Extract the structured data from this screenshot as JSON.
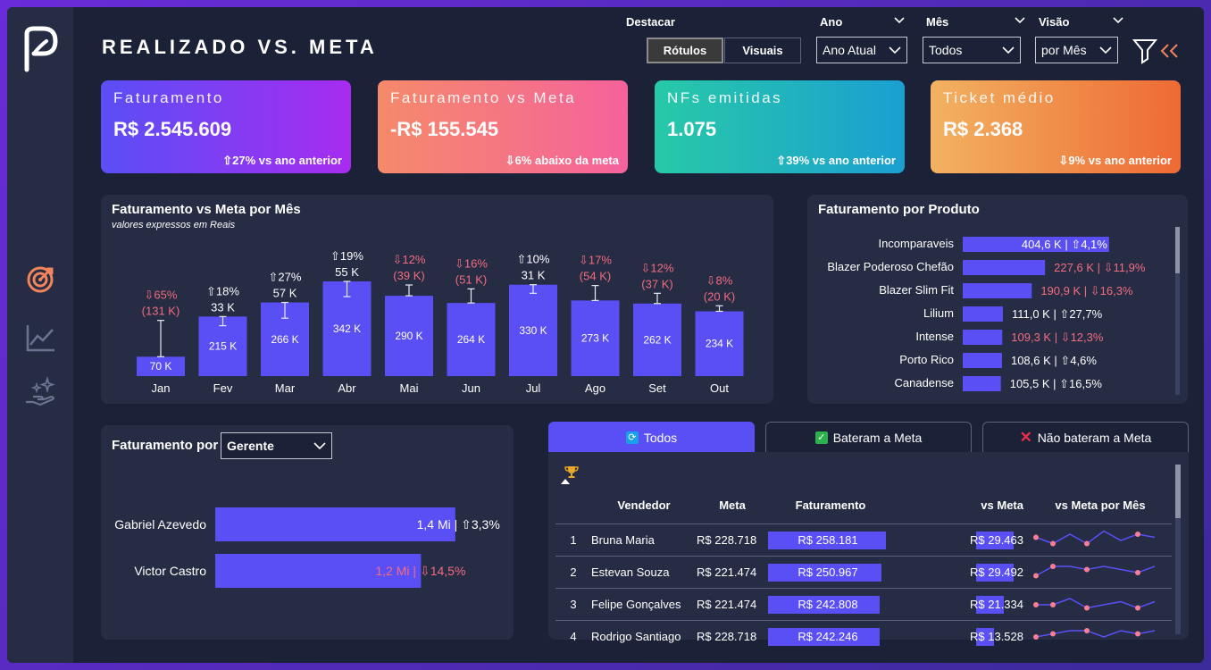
{
  "page_title": "REALIZADO VS. META",
  "filters": {
    "destacar_label": "Destacar",
    "destacar_buttons": [
      "Rótulos",
      "Visuais"
    ],
    "ano_label": "Ano",
    "ano_value": "Ano Atual",
    "mes_label": "Mês",
    "mes_value": "Todos",
    "visao_label": "Visão",
    "visao_value": "por Mês"
  },
  "kpis": [
    {
      "title": "Faturamento",
      "value": "R$ 2.545.609",
      "sub": "⇧27% vs ano anterior",
      "gradient": [
        "#5a4ef5",
        "#a82cf0"
      ]
    },
    {
      "title": "Faturamento vs Meta",
      "value": "-R$ 155.545",
      "sub": "⇩6% abaixo da meta",
      "gradient": [
        "#f58a6a",
        "#f5629c"
      ]
    },
    {
      "title": "NFs emitidas",
      "value": "1.075",
      "sub": "⇧39% vs ano anterior",
      "gradient": [
        "#27c9a8",
        "#1b9fd1"
      ]
    },
    {
      "title": "Ticket médio",
      "value": "R$ 2.368",
      "sub": "⇩9% vs ano anterior",
      "gradient": [
        "#f2b261",
        "#ee6a34"
      ]
    }
  ],
  "monthly": {
    "title": "Faturamento vs Meta por Mês",
    "subtitle": "valores expressos em Reais",
    "chart_data": {
      "type": "bar",
      "categories": [
        "Jan",
        "Fev",
        "Mar",
        "Abr",
        "Mai",
        "Jun",
        "Jul",
        "Ago",
        "Set",
        "Out"
      ],
      "values": [
        70,
        215,
        266,
        342,
        290,
        264,
        330,
        273,
        262,
        234
      ],
      "value_labels": [
        "70 K",
        "215 K",
        "266 K",
        "342 K",
        "290 K",
        "264 K",
        "330 K",
        "273 K",
        "262 K",
        "234 K"
      ],
      "meta": [
        201,
        182,
        209,
        287,
        329,
        315,
        299,
        327,
        299,
        254
      ],
      "pct_labels": [
        "⇩65%",
        "⇧18%",
        "⇧27%",
        "⇧19%",
        "⇩12%",
        "⇩16%",
        "⇧10%",
        "⇩17%",
        "⇩12%",
        "⇩8%"
      ],
      "diff_labels": [
        "(131 K)",
        "33 K",
        "57 K",
        "55 K",
        "(39 K)",
        "(51 K)",
        "31 K",
        "(54 K)",
        "(37 K)",
        "(20 K)"
      ],
      "positive": [
        false,
        true,
        true,
        true,
        false,
        false,
        true,
        false,
        false,
        false
      ]
    }
  },
  "produtos": {
    "title": "Faturamento por Produto",
    "chart_data": {
      "type": "bar",
      "categories": [
        "Incomparaveis",
        "Blazer Poderoso Chefão",
        "Blazer Slim Fit",
        "Lilium",
        "Intense",
        "Porto Rico",
        "Canadense"
      ],
      "values": [
        404.6,
        227.6,
        190.9,
        111.0,
        109.3,
        108.6,
        105.5
      ],
      "labels": [
        "404,6 K | ⇧4,1%",
        "227,6 K | ⇩11,9%",
        "190,9 K | ⇩16,3%",
        "111,0 K | ⇧27,7%",
        "109,3 K | ⇩12,3%",
        "108,6 K | ⇧4,6%",
        "105,5 K | ⇧16,5%"
      ],
      "positive": [
        true,
        false,
        false,
        true,
        false,
        true,
        true
      ]
    }
  },
  "gerente": {
    "title": "Faturamento por",
    "select_value": "Gerente",
    "chart_data": {
      "type": "bar",
      "categories": [
        "Gabriel Azevedo",
        "Victor Castro"
      ],
      "values": [
        1.4,
        1.2
      ],
      "labels": [
        "1,4 Mi | ⇧3,3%",
        "1,2 Mi | ⇩14,5%"
      ],
      "positive": [
        true,
        false
      ]
    }
  },
  "tabs": [
    {
      "label": "Todos",
      "icon": "sync-icon"
    },
    {
      "label": "Bateram a Meta",
      "icon": "check-icon"
    },
    {
      "label": "Não bateram a Meta",
      "icon": "x-icon"
    }
  ],
  "table": {
    "headers": [
      "Vendedor",
      "Meta",
      "Faturamento",
      "vs Meta",
      "vs Meta por Mês"
    ],
    "rows": [
      {
        "rank": "1",
        "vendedor": "Bruna Maria",
        "meta": "R$ 228.718",
        "faturamento": "R$ 258.181",
        "fat_ratio": 0.55,
        "vs_meta": "R$ 29.463",
        "vs_ratio": 0.62,
        "spark": [
          3,
          1,
          4,
          1,
          5,
          2,
          4,
          3
        ]
      },
      {
        "rank": "2",
        "vendedor": "Estevan Souza",
        "meta": "R$ 221.474",
        "faturamento": "R$ 250.967",
        "fat_ratio": 0.53,
        "vs_meta": "R$ 29.492",
        "vs_ratio": 0.62,
        "spark": [
          1,
          4,
          4,
          3,
          4,
          3,
          2,
          4
        ]
      },
      {
        "rank": "3",
        "vendedor": "Felipe Gonçalves",
        "meta": "R$ 221.474",
        "faturamento": "R$ 242.808",
        "fat_ratio": 0.52,
        "vs_meta": "R$ 21.334",
        "vs_ratio": 0.45,
        "spark": [
          2,
          2,
          4,
          1,
          2,
          3,
          1,
          3
        ]
      },
      {
        "rank": "4",
        "vendedor": "Rodrigo Santiago",
        "meta": "R$ 228.718",
        "faturamento": "R$ 242.246",
        "fat_ratio": 0.52,
        "vs_meta": "R$ 13.528",
        "vs_ratio": 0.29,
        "spark": [
          2,
          3,
          4,
          4,
          2,
          4,
          3,
          4
        ]
      }
    ]
  },
  "colors": {
    "accent": "#5a4ef5",
    "negative": "#f36c7f",
    "positive": "#ffffff",
    "marker": "#f77e95"
  }
}
